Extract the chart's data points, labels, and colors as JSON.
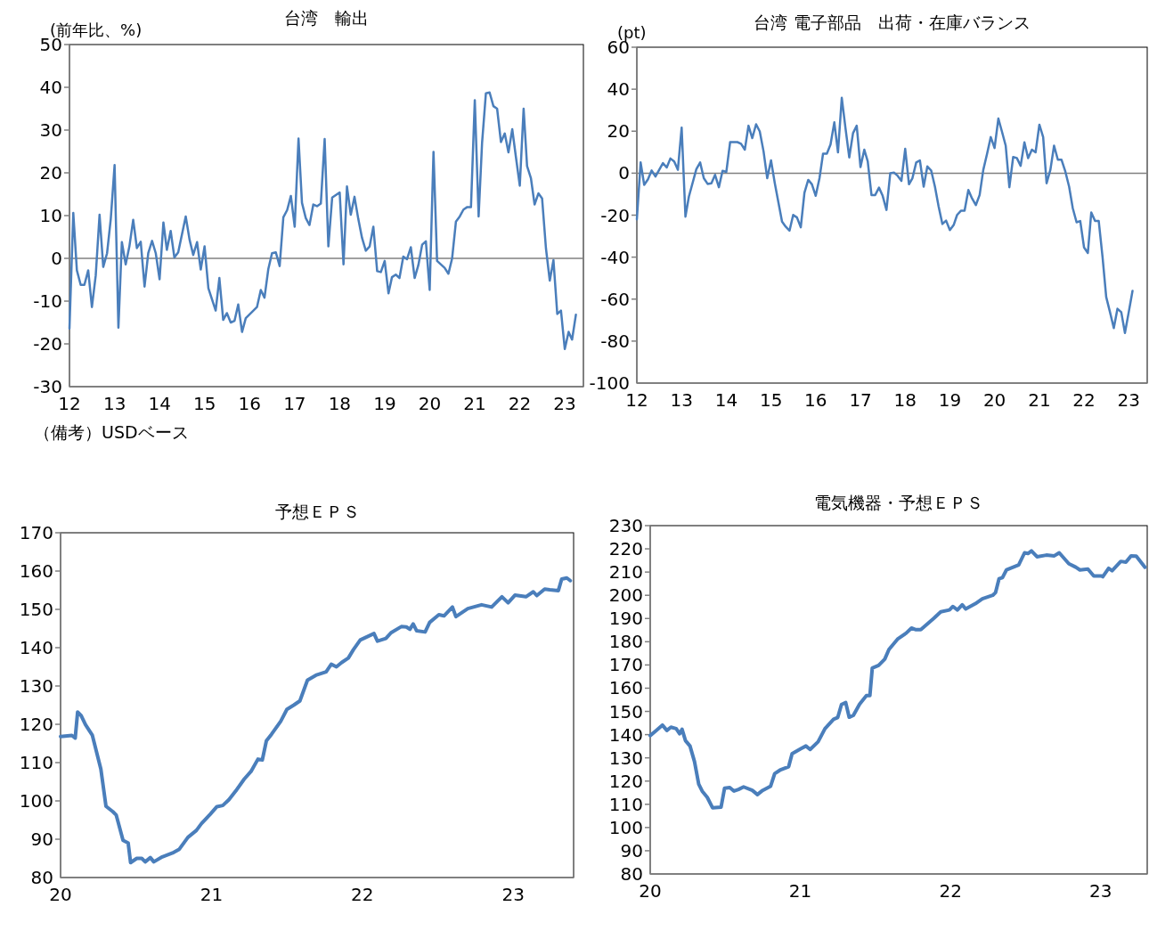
{
  "chart_data": [
    {
      "type": "line",
      "title": "台湾　輸出",
      "ylabel": "(前年比、%)",
      "annotations": [
        "（備考）USDベース"
      ],
      "xlim": [
        "2012-01",
        "2023-06"
      ],
      "xticks": [
        {
          "value": "2012-01",
          "label": "12"
        },
        {
          "value": "2013-01",
          "label": "13"
        },
        {
          "value": "2014-01",
          "label": "14"
        },
        {
          "value": "2015-01",
          "label": "15"
        },
        {
          "value": "2016-01",
          "label": "16"
        },
        {
          "value": "2017-01",
          "label": "17"
        },
        {
          "value": "2018-01",
          "label": "18"
        },
        {
          "value": "2019-01",
          "label": "19"
        },
        {
          "value": "2020-01",
          "label": "20"
        },
        {
          "value": "2021-01",
          "label": "21"
        },
        {
          "value": "2022-01",
          "label": "22"
        },
        {
          "value": "2023-01",
          "label": "23"
        }
      ],
      "ylim": [
        -30,
        50
      ],
      "yticks": [
        -30,
        -20,
        -10,
        0,
        10,
        20,
        30,
        40,
        50
      ],
      "ref_lines": [
        {
          "axis": "y",
          "value": 0,
          "color": "#808080"
        }
      ],
      "series": [
        {
          "color": "#4a7ebb",
          "x": [
            "2012-01",
            "2012-02",
            "2012-03",
            "2012-04",
            "2012-05",
            "2012-06",
            "2012-07",
            "2012-08",
            "2012-09",
            "2012-10",
            "2012-11",
            "2012-12",
            "2013-01",
            "2013-02",
            "2013-03",
            "2013-04",
            "2013-05",
            "2013-06",
            "2013-07",
            "2013-08",
            "2013-09",
            "2013-10",
            "2013-11",
            "2013-12",
            "2014-01",
            "2014-02",
            "2014-03",
            "2014-04",
            "2014-05",
            "2014-06",
            "2014-08",
            "2014-09",
            "2014-10",
            "2014-11",
            "2014-12",
            "2015-01",
            "2015-02",
            "2015-04",
            "2015-05",
            "2015-06",
            "2015-07",
            "2015-08",
            "2015-09",
            "2015-10",
            "2015-11",
            "2015-12",
            "2016-03",
            "2016-04",
            "2016-05",
            "2016-06",
            "2016-07",
            "2016-08",
            "2016-09",
            "2016-10",
            "2016-11",
            "2016-12",
            "2017-01",
            "2017-02",
            "2017-03",
            "2017-04",
            "2017-05",
            "2017-06",
            "2017-07",
            "2017-08",
            "2017-09",
            "2017-10",
            "2017-11",
            "2018-01",
            "2018-02",
            "2018-03",
            "2018-04",
            "2018-05",
            "2018-06",
            "2018-07",
            "2018-08",
            "2018-09",
            "2018-10",
            "2018-11",
            "2018-12",
            "2019-01",
            "2019-02",
            "2019-03",
            "2019-04",
            "2019-05",
            "2019-06",
            "2019-07",
            "2019-08",
            "2019-09",
            "2019-10",
            "2019-11",
            "2019-12",
            "2020-01",
            "2020-02",
            "2020-03",
            "2020-05",
            "2020-06",
            "2020-07",
            "2020-08",
            "2020-09",
            "2020-10",
            "2020-11",
            "2020-12",
            "2021-01",
            "2021-02",
            "2021-03",
            "2021-04",
            "2021-05",
            "2021-06",
            "2021-07",
            "2021-08",
            "2021-09",
            "2021-10",
            "2021-11",
            "2021-12",
            "2022-01",
            "2022-02",
            "2022-03",
            "2022-04",
            "2022-05",
            "2022-06",
            "2022-07",
            "2022-08",
            "2022-09",
            "2022-10",
            "2022-11",
            "2022-12",
            "2023-01",
            "2023-02",
            "2023-03",
            "2023-04"
          ],
          "values": [
            -16.4,
            10.6,
            -2.8,
            -6.2,
            -6.2,
            -2.8,
            -11.4,
            -4,
            10.2,
            -2,
            1.2,
            9.2,
            21.8,
            -16.2,
            3.8,
            -1.4,
            2.8,
            9,
            2.4,
            3.9,
            -6.6,
            1.2,
            4.1,
            1.2,
            -4.9,
            8.4,
            2,
            6.4,
            0.2,
            1.4,
            9.8,
            4.4,
            0.8,
            3.8,
            -2.6,
            2.8,
            -7,
            -12.2,
            -4.6,
            -14.4,
            -12.8,
            -15,
            -14.6,
            -10.8,
            -17.2,
            -14,
            -11.4,
            -7.4,
            -9.2,
            -2.5,
            1.2,
            1.4,
            -1.8,
            9.6,
            11.3,
            14.6,
            7.4,
            28,
            13,
            9.4,
            7.8,
            12.6,
            12.2,
            12.8,
            27.9,
            2.8,
            14.2,
            15.4,
            -1.4,
            16.8,
            10.2,
            14.4,
            9.2,
            4.8,
            1.8,
            2.8,
            7.4,
            -3,
            -3.2,
            -0.6,
            -8.2,
            -4.4,
            -3.8,
            -4.6,
            0.4,
            -0.2,
            2.6,
            -4.6,
            -1.6,
            3.2,
            4,
            -7.4,
            24.9,
            -0.6,
            -2.2,
            -3.6,
            0,
            8.6,
            9.8,
            11.4,
            12,
            12,
            37,
            9.8,
            27,
            38.6,
            38.8,
            35.6,
            35,
            27.2,
            29.2,
            24.8,
            30.2,
            23.6,
            17,
            35,
            21.6,
            18.8,
            12.6,
            15.2,
            14,
            2.4,
            -5.2,
            -0.4,
            -13,
            -12.2,
            -21.2,
            -17.2,
            -19,
            -13.2
          ]
        }
      ]
    },
    {
      "type": "line",
      "title": "台湾 電子部品　出荷・在庫バランス",
      "ylabel": "(pt)",
      "xlim": [
        "2012-01",
        "2023-06"
      ],
      "xticks": [
        {
          "value": "2012-01",
          "label": "12"
        },
        {
          "value": "2013-01",
          "label": "13"
        },
        {
          "value": "2014-01",
          "label": "14"
        },
        {
          "value": "2015-01",
          "label": "15"
        },
        {
          "value": "2016-01",
          "label": "16"
        },
        {
          "value": "2017-01",
          "label": "17"
        },
        {
          "value": "2018-01",
          "label": "18"
        },
        {
          "value": "2019-01",
          "label": "19"
        },
        {
          "value": "2020-01",
          "label": "20"
        },
        {
          "value": "2021-01",
          "label": "21"
        },
        {
          "value": "2022-01",
          "label": "22"
        },
        {
          "value": "2023-01",
          "label": "23"
        }
      ],
      "ylim": [
        -100,
        60
      ],
      "yticks": [
        -100,
        -80,
        -60,
        -40,
        -20,
        0,
        20,
        40,
        60
      ],
      "ref_lines": [
        {
          "axis": "y",
          "value": 0,
          "color": "#808080"
        }
      ],
      "series": [
        {
          "color": "#4a7ebb",
          "x": [
            "2012-01",
            "2012-02",
            "2012-03",
            "2012-04",
            "2012-05",
            "2012-06",
            "2012-08",
            "2012-09",
            "2012-10",
            "2012-11",
            "2012-12",
            "2013-01",
            "2013-02",
            "2013-03",
            "2013-05",
            "2013-06",
            "2013-07",
            "2013-08",
            "2013-09",
            "2013-10",
            "2013-11",
            "2013-12",
            "2014-01",
            "2014-02",
            "2014-04",
            "2014-05",
            "2014-06",
            "2014-07",
            "2014-08",
            "2014-09",
            "2014-10",
            "2014-11",
            "2014-12",
            "2015-01",
            "2015-02",
            "2015-04",
            "2015-05",
            "2015-06",
            "2015-07",
            "2015-08",
            "2015-09",
            "2015-10",
            "2015-11",
            "2015-12",
            "2016-01",
            "2016-02",
            "2016-03",
            "2016-04",
            "2016-05",
            "2016-06",
            "2016-07",
            "2016-08",
            "2016-09",
            "2016-10",
            "2016-11",
            "2016-12",
            "2017-01",
            "2017-02",
            "2017-03",
            "2017-04",
            "2017-05",
            "2017-06",
            "2017-07",
            "2017-08",
            "2017-09",
            "2017-10",
            "2017-11",
            "2017-12",
            "2018-01",
            "2018-02",
            "2018-03",
            "2018-04",
            "2018-05",
            "2018-06",
            "2018-07",
            "2018-08",
            "2018-09",
            "2018-10",
            "2018-11",
            "2018-12",
            "2019-01",
            "2019-02",
            "2019-03",
            "2019-04",
            "2019-05",
            "2019-06",
            "2019-07",
            "2019-08",
            "2019-09",
            "2019-10",
            "2019-11",
            "2019-12",
            "2020-01",
            "2020-02",
            "2020-03",
            "2020-04",
            "2020-05",
            "2020-06",
            "2020-07",
            "2020-08",
            "2020-09",
            "2020-10",
            "2020-11",
            "2020-12",
            "2021-01",
            "2021-02",
            "2021-03",
            "2021-04",
            "2021-05",
            "2021-06",
            "2021-07",
            "2021-08",
            "2021-09",
            "2021-10",
            "2021-11",
            "2021-12",
            "2022-01",
            "2022-02",
            "2022-03",
            "2022-04",
            "2022-05",
            "2022-06",
            "2022-07",
            "2022-08",
            "2022-09",
            "2022-10",
            "2022-11",
            "2022-12",
            "2023-01",
            "2023-02"
          ],
          "values": [
            -22,
            5.1,
            -5.6,
            -2.9,
            1.3,
            -1.6,
            4.8,
            2.7,
            7,
            5.6,
            1.6,
            21.7,
            -20.7,
            -11.2,
            1.9,
            5.1,
            -2.4,
            -5.1,
            -4.8,
            -0.8,
            -6.7,
            1.1,
            0.6,
            14.8,
            14.8,
            14,
            11.2,
            22.6,
            16.7,
            23.3,
            19.9,
            10.4,
            -2.4,
            6.1,
            -4.8,
            -23.1,
            -25.5,
            -27.4,
            -19.9,
            -21.1,
            -25.8,
            -9.3,
            -3.2,
            -5.3,
            -10.8,
            -2.4,
            9.3,
            9.3,
            13.6,
            24.2,
            9.9,
            35.9,
            21.1,
            7.5,
            19.1,
            22.6,
            2.9,
            11.2,
            5.6,
            -10.5,
            -10.4,
            -6.9,
            -10.8,
            -17.5,
            0,
            0.3,
            -1.3,
            -3.7,
            11.6,
            -5.3,
            -2.4,
            5.1,
            6.1,
            -6.4,
            3.2,
            1.3,
            -6.4,
            -15.9,
            -24.2,
            -22.6,
            -27.1,
            -24.7,
            -19.9,
            -17.9,
            -17.9,
            -8,
            -12,
            -15.2,
            -10.4,
            1.6,
            9.3,
            17.2,
            12,
            26,
            19.9,
            13.1,
            -6.7,
            7.7,
            7.2,
            3.5,
            14.7,
            7.2,
            11.2,
            9.9,
            23.1,
            17.2,
            -4.8,
            1.6,
            13.1,
            6.4,
            6.4,
            0.8,
            -6.4,
            -16.7,
            -23.4,
            -22.8,
            -35.4,
            -38,
            -18.7,
            -22.8,
            -22.8,
            -39.9,
            -59,
            -66.2,
            -73.8,
            -64.6,
            -66.2,
            -76.1,
            -66.2,
            -56.1
          ]
        }
      ]
    },
    {
      "type": "line",
      "title": "予想ＥＰＳ",
      "xlim": [
        2020,
        2023.4
      ],
      "xticks": [
        {
          "value": 2020,
          "label": "20"
        },
        {
          "value": 2021,
          "label": "21"
        },
        {
          "value": 2022,
          "label": "22"
        },
        {
          "value": 2023,
          "label": "23"
        }
      ],
      "ylim": [
        80,
        170
      ],
      "yticks": [
        80,
        90,
        100,
        110,
        120,
        130,
        140,
        150,
        160,
        170
      ],
      "series": [
        {
          "color": "#4a7ebb",
          "x": [
            2020,
            2020.075,
            2020.097,
            2020.113,
            2020.136,
            2020.165,
            2020.21,
            2020.267,
            2020.301,
            2020.346,
            2020.369,
            2020.414,
            2020.448,
            2020.464,
            2020.505,
            2020.538,
            2020.561,
            2020.595,
            2020.618,
            2020.674,
            2020.742,
            2020.787,
            2020.844,
            2020.9,
            2020.934,
            2020.991,
            2021.036,
            2021.075,
            2021.115,
            2021.161,
            2021.217,
            2021.262,
            2021.308,
            2021.337,
            2021.364,
            2021.398,
            2021.459,
            2021.5,
            2021.545,
            2021.586,
            2021.636,
            2021.692,
            2021.76,
            2021.794,
            2021.828,
            2021.862,
            2021.907,
            2021.941,
            2021.986,
            2022.077,
            2022.1,
            2022.156,
            2022.19,
            2022.258,
            2022.292,
            2022.315,
            2022.337,
            2022.36,
            2022.416,
            2022.446,
            2022.507,
            2022.541,
            2022.597,
            2022.62,
            2022.699,
            2022.79,
            2022.857,
            2022.925,
            2022.966,
            2023.011,
            2023.084,
            2023.133,
            2023.156,
            2023.208,
            2023.242,
            2023.299,
            2023.321,
            2023.355,
            2023.378
          ],
          "values": [
            116.8,
            117.1,
            116.4,
            123.2,
            122.3,
            119.9,
            117.2,
            108.3,
            98.6,
            97.2,
            96.3,
            89.7,
            89,
            83.9,
            85,
            85,
            84.1,
            85.2,
            84.1,
            85.4,
            86.4,
            87.4,
            90.5,
            92.3,
            94.1,
            96.5,
            98.5,
            98.8,
            100.3,
            102.6,
            105.7,
            107.7,
            110.9,
            110.7,
            115.7,
            117.4,
            120.8,
            123.9,
            125,
            126.1,
            131.5,
            132.8,
            133.7,
            135.7,
            135,
            136.1,
            137.3,
            139.5,
            142,
            143.7,
            141.7,
            142.4,
            143.9,
            145.5,
            145.4,
            144.8,
            146.2,
            144.4,
            144.1,
            146.6,
            148.6,
            148.3,
            150.6,
            148.1,
            150.2,
            151.2,
            150.6,
            153.3,
            151.7,
            153.7,
            153.3,
            154.6,
            153.6,
            155.3,
            155.1,
            154.9,
            157.9,
            158.2,
            157.5
          ]
        }
      ]
    },
    {
      "type": "line",
      "title": "電気機器・予想ＥＰＳ",
      "xlim": [
        2020,
        2023.31
      ],
      "xticks": [
        {
          "value": 2020,
          "label": "20"
        },
        {
          "value": 2021,
          "label": "21"
        },
        {
          "value": 2022,
          "label": "22"
        },
        {
          "value": 2023,
          "label": "23"
        }
      ],
      "ylim": [
        80,
        230
      ],
      "yticks": [
        80,
        90,
        100,
        110,
        120,
        130,
        140,
        150,
        160,
        170,
        180,
        190,
        200,
        210,
        220,
        230
      ],
      "series": [
        {
          "color": "#4a7ebb",
          "x": [
            2020,
            2020.035,
            2020.081,
            2020.111,
            2020.138,
            2020.173,
            2020.196,
            2020.212,
            2020.235,
            2020.265,
            2020.295,
            2020.323,
            2020.346,
            2020.38,
            2020.415,
            2020.472,
            2020.495,
            2020.53,
            2020.558,
            2020.588,
            2020.622,
            2020.68,
            2020.714,
            2020.749,
            2020.802,
            2020.829,
            2020.864,
            2020.922,
            2020.945,
            2021.002,
            2021.037,
            2021.065,
            2021.118,
            2021.164,
            2021.221,
            2021.249,
            2021.274,
            2021.302,
            2021.325,
            2021.353,
            2021.394,
            2021.44,
            2021.463,
            2021.479,
            2021.521,
            2021.562,
            2021.59,
            2021.647,
            2021.705,
            2021.74,
            2021.77,
            2021.802,
            2021.855,
            2021.889,
            2021.935,
            2021.993,
            2022.016,
            2022.046,
            2022.078,
            2022.101,
            2022.166,
            2022.212,
            2022.281,
            2022.3,
            2022.323,
            2022.346,
            2022.373,
            2022.454,
            2022.493,
            2022.516,
            2022.539,
            2022.576,
            2022.638,
            2022.691,
            2022.724,
            2022.788,
            2022.834,
            2022.862,
            2022.915,
            2022.954,
            2023.007,
            2023.014,
            2023.053,
            2023.076,
            2023.134,
            2023.168,
            2023.203,
            2023.237,
            2023.295
          ],
          "values": [
            139.6,
            141.5,
            144.1,
            141.8,
            143.2,
            142.6,
            140.4,
            142.3,
            137.4,
            135.1,
            128.4,
            118.7,
            115.7,
            113,
            108.5,
            108.8,
            116.9,
            117.2,
            115.7,
            116.4,
            117.5,
            116,
            114.2,
            116,
            117.8,
            123.2,
            124.7,
            126.2,
            131.8,
            133.9,
            135.1,
            133.6,
            136.9,
            142.6,
            146.6,
            147.4,
            153,
            153.8,
            147.5,
            148.3,
            153.1,
            156.8,
            156.8,
            168.7,
            169.8,
            172.5,
            176.7,
            181.1,
            183.7,
            185.9,
            185.2,
            185.2,
            188.2,
            190.1,
            192.9,
            193.7,
            195.2,
            193.7,
            195.9,
            194.1,
            196.4,
            198.5,
            200,
            201.2,
            207.1,
            207.6,
            211,
            213.1,
            218.3,
            218,
            219.1,
            216.6,
            217.3,
            217,
            218.3,
            213.6,
            212.1,
            210.9,
            211.3,
            208.3,
            208.3,
            208,
            211.6,
            210.6,
            214.6,
            214.3,
            217,
            216.9,
            212.1
          ]
        }
      ]
    }
  ]
}
